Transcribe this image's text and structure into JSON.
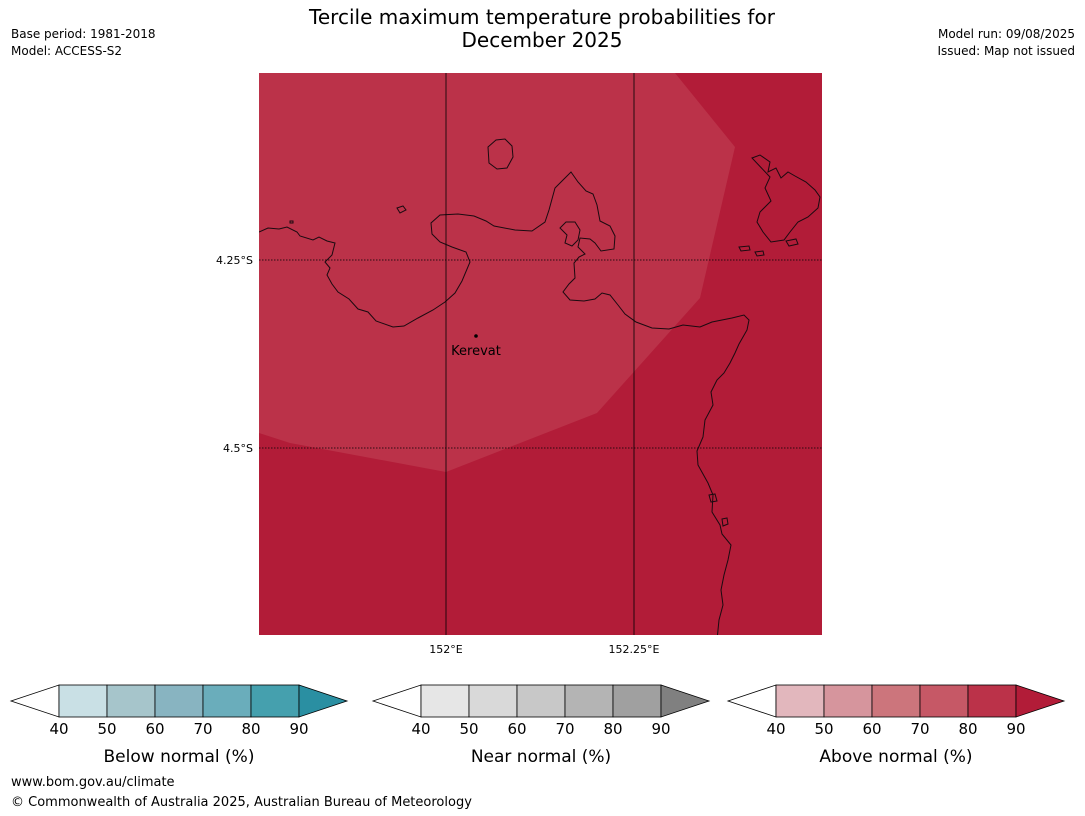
{
  "title_line1": "Tercile maximum temperature probabilities for",
  "title_line2": "December 2025",
  "meta_left": {
    "base_period": "Base period: 1981-2018",
    "model": "Model: ACCESS-S2"
  },
  "meta_right": {
    "model_run": "Model run: 09/08/2025",
    "issued": "Issued: Map not issued"
  },
  "map": {
    "place_label": "Kerevat",
    "lat_labels": [
      "4.25°S",
      "4.5°S"
    ],
    "lon_labels": [
      "152°E",
      "152.25°E"
    ],
    "fill_colors": {
      "band_80_90": "#bb3249",
      "band_90": "#b21c38"
    }
  },
  "legends": [
    {
      "label": "Below normal (%)",
      "ticks": [
        "40",
        "50",
        "60",
        "70",
        "80",
        "90"
      ],
      "colors": [
        "#ffffff",
        "#c9e0e5",
        "#a6c5cb",
        "#88b4c1",
        "#6aadbb",
        "#45a0ae",
        "#2a8fa2"
      ]
    },
    {
      "label": "Near normal (%)",
      "ticks": [
        "40",
        "50",
        "60",
        "70",
        "80",
        "90"
      ],
      "colors": [
        "#ffffff",
        "#e6e6e6",
        "#d9d9d9",
        "#c8c8c8",
        "#b4b4b4",
        "#a0a0a0",
        "#808080"
      ]
    },
    {
      "label": "Above normal (%)",
      "ticks": [
        "40",
        "50",
        "60",
        "70",
        "80",
        "90"
      ],
      "colors": [
        "#ffffff",
        "#e2b7bd",
        "#d6959d",
        "#cc757c",
        "#c65866",
        "#bb3249",
        "#b21c38"
      ]
    }
  ],
  "footer": {
    "url": "www.bom.gov.au/climate",
    "copyright": "© Commonwealth of Australia 2025, Australian Bureau of Meteorology"
  }
}
